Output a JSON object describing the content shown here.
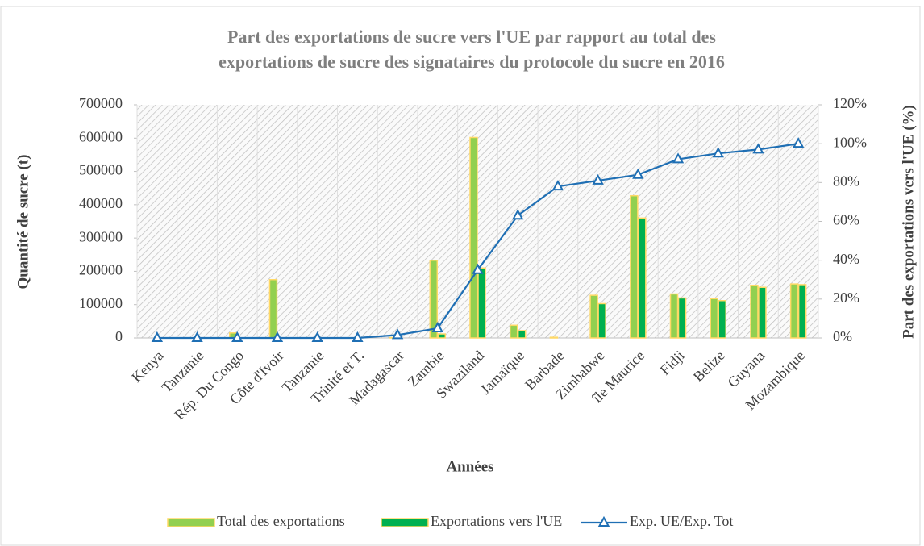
{
  "chart_data": {
    "type": "bar-line",
    "title": [
      "Part des exportations de sucre vers l'UE par rapport au total des",
      "exportations de sucre des signataires du protocole du sucre en 2016"
    ],
    "xlabel": "Années",
    "ylabel": "Quantité de sucre (t)",
    "y2label": "Part des exportations vers l'UE (%)",
    "categories": [
      "Kenya",
      "Tanzanie",
      "Rép. Du Congo",
      "Côte d'Ivoir",
      "Tanzanie",
      "Trinité et T.",
      "Madagascar",
      "Zambie",
      "Swaziland",
      "Jamaïque",
      "Barbade",
      "Zimbabwe",
      "île Maurice",
      "Fidji",
      "Belize",
      "Guyana",
      "Mozambique"
    ],
    "series": [
      {
        "name": "Total des exportations",
        "type": "bar",
        "color": "#92d050",
        "border": "#ffd966",
        "values": [
          0,
          0,
          15000,
          175000,
          0,
          0,
          1000,
          233000,
          602000,
          38000,
          2000,
          128000,
          427000,
          132000,
          118000,
          158000,
          162000
        ]
      },
      {
        "name": "Exportations vers l'UE",
        "type": "bar",
        "color": "#00b050",
        "border": "#ffd966",
        "values": [
          0,
          0,
          0,
          0,
          0,
          0,
          0,
          12000,
          210000,
          22000,
          0,
          103000,
          360000,
          120000,
          112000,
          152000,
          160000
        ]
      },
      {
        "name": "Exp. UE/Exp. Tot",
        "type": "line",
        "axis": "y2",
        "color": "#1f6fb4",
        "values": [
          0,
          0,
          0,
          0,
          0,
          0,
          1.5,
          5,
          35,
          63,
          78,
          81,
          84,
          92,
          95,
          97,
          100
        ]
      }
    ],
    "ylim": [
      0,
      700000
    ],
    "yticks": [
      0,
      100000,
      200000,
      300000,
      400000,
      500000,
      600000,
      700000
    ],
    "y2lim": [
      0,
      120
    ],
    "y2ticks": [
      {
        "value": 0,
        "label": "0%"
      },
      {
        "value": 20,
        "label": "20%"
      },
      {
        "value": 40,
        "label": "40%"
      },
      {
        "value": 60,
        "label": "60%"
      },
      {
        "value": 80,
        "label": "80%"
      },
      {
        "value": 100,
        "label": "100%"
      },
      {
        "value": 120,
        "label": "120%"
      }
    ],
    "legend": "bottom"
  }
}
